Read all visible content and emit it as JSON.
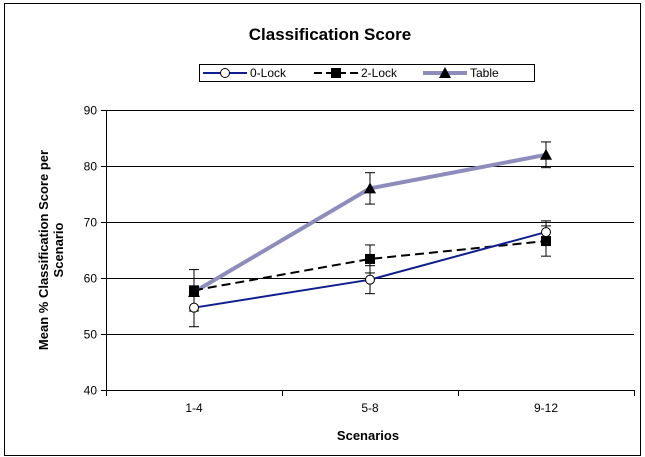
{
  "chart_data": {
    "type": "line",
    "title": "Classification Score",
    "xlabel": "Scenarios",
    "ylabel": [
      "Mean % Classification  Score per",
      "Scenario"
    ],
    "categories": [
      "1-4",
      "5-8",
      "9-12"
    ],
    "ylim": [
      40,
      90
    ],
    "yticks": [
      40,
      50,
      60,
      70,
      80,
      90
    ],
    "grid": true,
    "legend_position": "top",
    "series": [
      {
        "name": "0-Lock",
        "values": [
          54.7,
          59.7,
          68.2
        ],
        "error": [
          3.4,
          2.5,
          2.0
        ],
        "color": "#0f1f8f",
        "line_style": "solid",
        "marker": "circle-open"
      },
      {
        "name": "2-Lock",
        "values": [
          57.8,
          63.4,
          66.6
        ],
        "error": [
          3.7,
          2.5,
          2.7
        ],
        "color": "#000000",
        "line_style": "dashed",
        "marker": "square"
      },
      {
        "name": "Table",
        "values": [
          57.5,
          76.0,
          82.0
        ],
        "error": [
          0,
          2.8,
          2.3
        ],
        "color": "#8e8cbd",
        "line_style": "solid",
        "marker": "triangle"
      }
    ]
  }
}
